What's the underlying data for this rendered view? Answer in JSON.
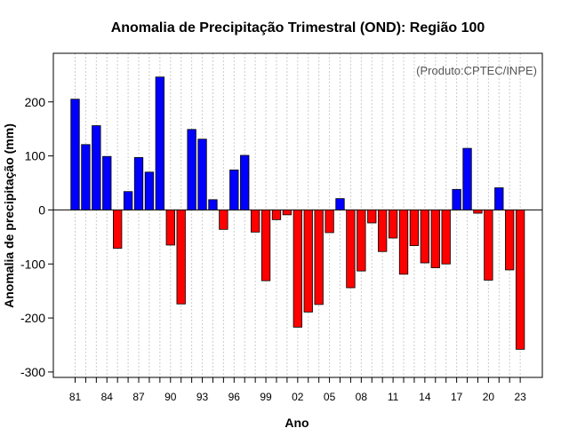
{
  "chart_data": {
    "type": "bar",
    "title": "Anomalia de Precipitação Trimestral (OND): Região 100",
    "xlabel": "Ano",
    "ylabel": "Anomalia de precipitação (mm)",
    "credit": "(Produto:CPTEC/INPE)",
    "ylim": [
      -310,
      290
    ],
    "y_ticks": [
      -300,
      -200,
      -100,
      0,
      100,
      200
    ],
    "x_tick_labels": [
      "81",
      "84",
      "87",
      "90",
      "93",
      "96",
      "99",
      "02",
      "05",
      "08",
      "11",
      "14",
      "17",
      "20",
      "23"
    ],
    "grid": "vertical dotted",
    "categories": [
      "1981",
      "1982",
      "1983",
      "1984",
      "1985",
      "1986",
      "1987",
      "1988",
      "1989",
      "1990",
      "1991",
      "1992",
      "1993",
      "1994",
      "1995",
      "1996",
      "1997",
      "1998",
      "1999",
      "2000",
      "2001",
      "2002",
      "2003",
      "2004",
      "2005",
      "2006",
      "2007",
      "2008",
      "2009",
      "2010",
      "2011",
      "2012",
      "2013",
      "2014",
      "2015",
      "2016",
      "2017",
      "2018",
      "2019",
      "2020",
      "2021",
      "2022",
      "2023"
    ],
    "values": [
      205,
      121,
      156,
      99,
      -71,
      34,
      97,
      70,
      246,
      -65,
      -174,
      149,
      131,
      19,
      -36,
      74,
      101,
      -41,
      -131,
      -18,
      -9,
      -217,
      -189,
      -175,
      -42,
      21,
      -144,
      -113,
      -24,
      -77,
      -52,
      -119,
      -66,
      -98,
      -107,
      -100,
      38,
      114,
      -6,
      -130,
      41,
      -111,
      -258
    ],
    "colors": {
      "positive": "#0000ff",
      "negative": "#ff0000",
      "grid": "#cccccc"
    }
  }
}
